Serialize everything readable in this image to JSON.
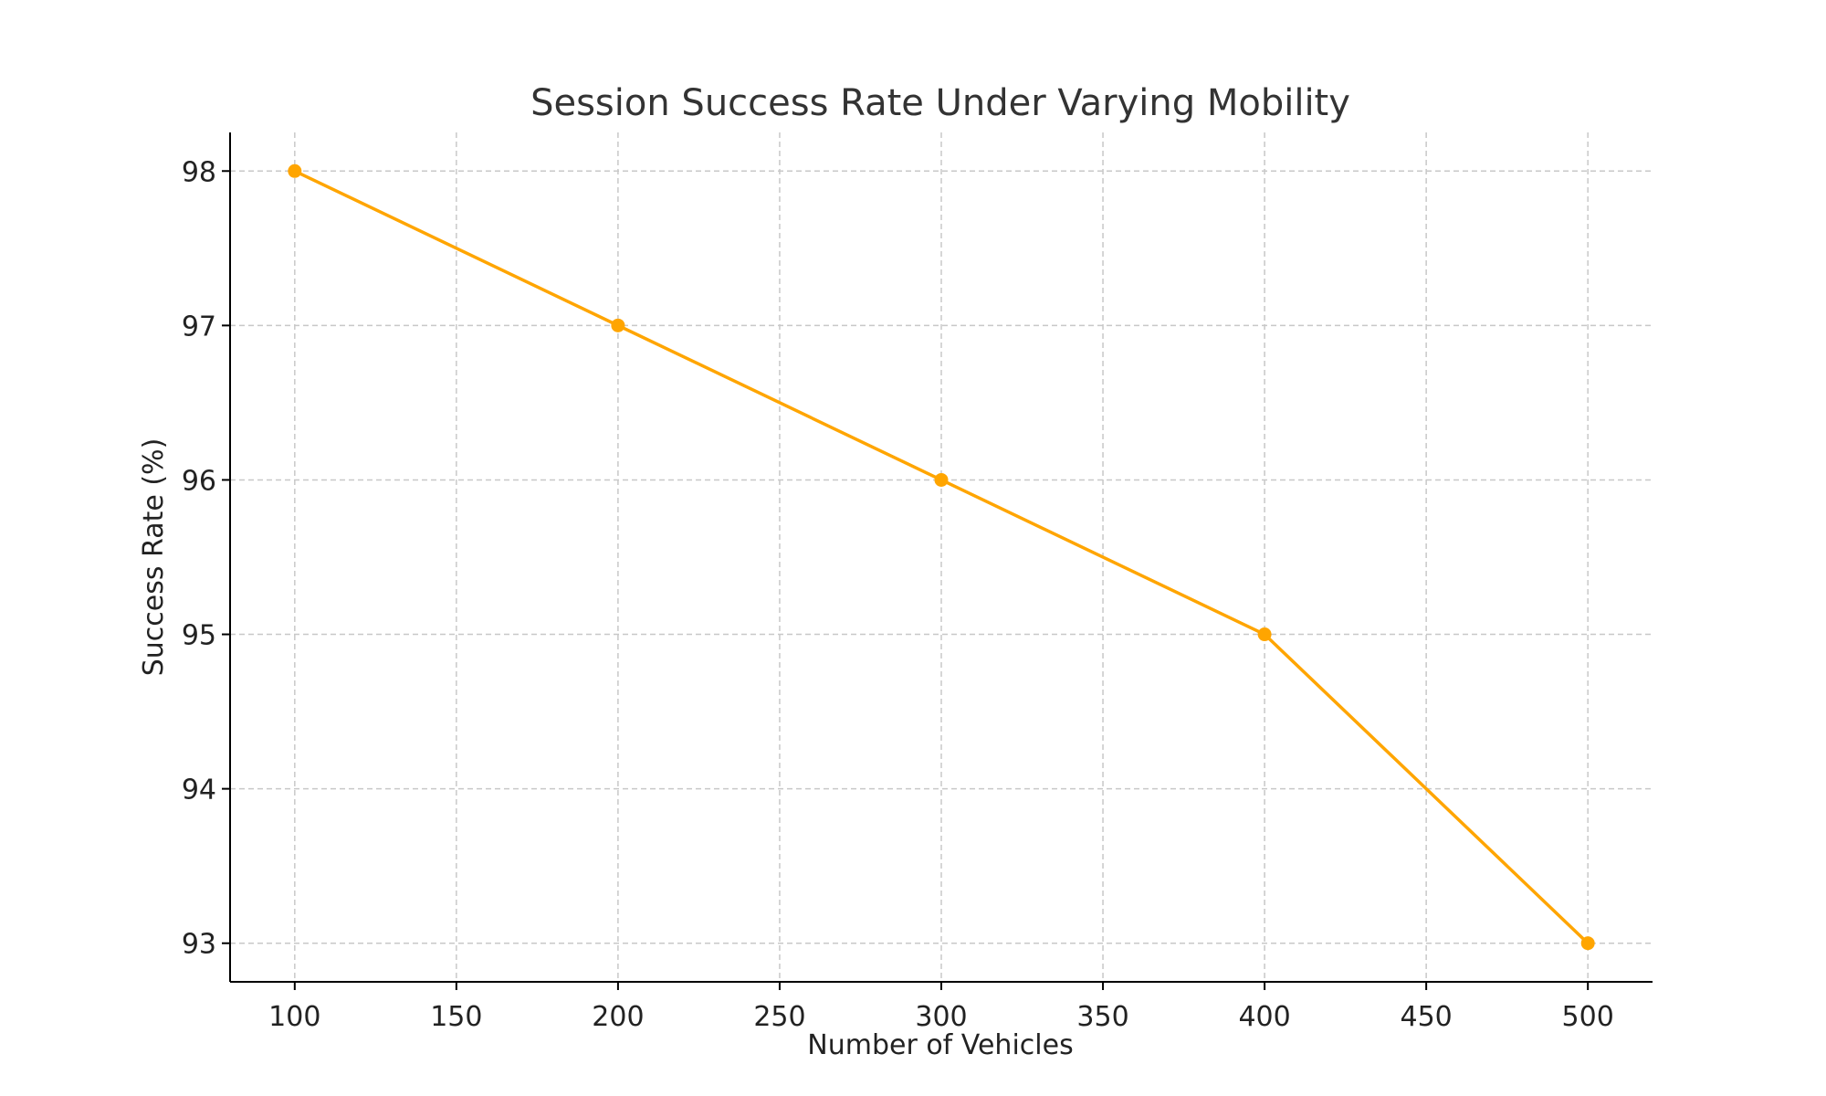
{
  "chart_data": {
    "type": "line",
    "title": "Session Success Rate Under Varying Mobility",
    "xlabel": "Number of Vehicles",
    "ylabel": "Success Rate (%)",
    "xlim": [
      80,
      520
    ],
    "ylim": [
      92.75,
      98.25
    ],
    "xticks": [
      100,
      150,
      200,
      250,
      300,
      350,
      400,
      450,
      500
    ],
    "yticks": [
      93,
      94,
      95,
      96,
      97,
      98
    ],
    "grid": true,
    "series": [
      {
        "name": "Success Rate",
        "color": "#FFA500",
        "marker": "circle",
        "x": [
          100,
          200,
          300,
          400,
          500
        ],
        "y": [
          98,
          97,
          96,
          95,
          93
        ]
      }
    ]
  }
}
